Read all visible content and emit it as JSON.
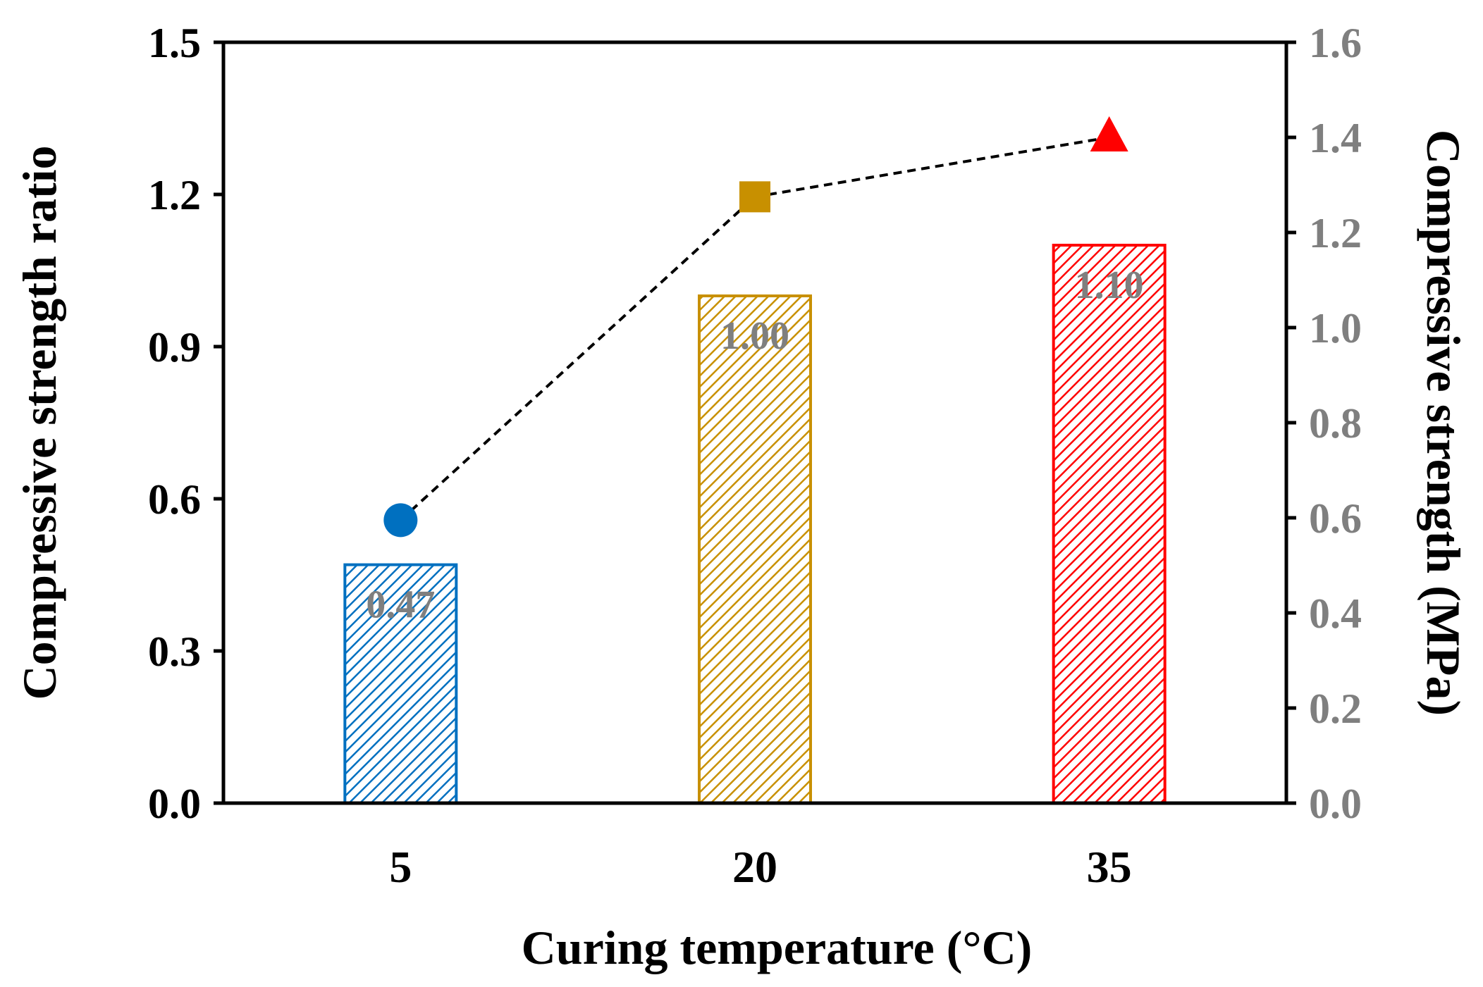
{
  "chart_data": {
    "type": "bar",
    "xlabel": "Curing temperature (°C)",
    "ylabel": "Compressive strength ratio",
    "y2label": "Compressive strength (MPa)",
    "categories": [
      "5",
      "20",
      "35"
    ],
    "ylim": [
      0,
      1.5
    ],
    "yticks": [
      "0.0",
      "0.3",
      "0.6",
      "0.9",
      "1.2",
      "1.5"
    ],
    "y2lim": [
      0,
      1.6
    ],
    "y2ticks": [
      "0.0",
      "0.2",
      "0.4",
      "0.6",
      "0.8",
      "1.0",
      "1.2",
      "1.4",
      "1.6"
    ],
    "grid": false,
    "bars": {
      "axis": "left",
      "values": [
        0.47,
        1.0,
        1.1
      ],
      "labels": [
        "0.47",
        "1.00",
        "1.10"
      ],
      "colors": [
        "#0070c0",
        "#c89000",
        "#ff0000"
      ],
      "fill": "diagonal-hatch"
    },
    "line": {
      "axis": "right",
      "values": [
        0.595,
        1.275,
        1.4
      ],
      "style": "dashed",
      "line_color": "#000000",
      "markers": [
        "circle",
        "square",
        "triangle"
      ],
      "marker_colors": [
        "#0070c0",
        "#c89000",
        "#ff0000"
      ]
    }
  }
}
